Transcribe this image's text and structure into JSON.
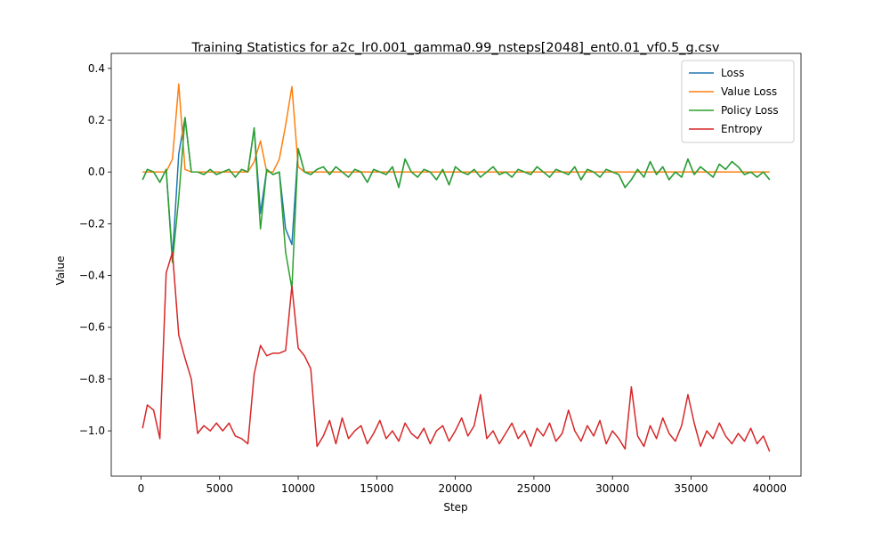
{
  "chart_data": {
    "type": "line",
    "title": "Training Statistics for a2c_lr0.001_gamma0.99_nsteps[2048]_ent0.01_vf0.5_g.csv",
    "xlabel": "Step",
    "ylabel": "Value",
    "legend": "upper right",
    "grid": false,
    "xlim": [
      -1895,
      41995
    ],
    "ylim": [
      -1.175,
      0.458
    ],
    "xticks": [
      0,
      5000,
      10000,
      15000,
      20000,
      25000,
      30000,
      35000,
      40000
    ],
    "yticks": [
      {
        "value": -1.0,
        "label": "−1.0"
      },
      {
        "value": -0.8,
        "label": "−0.8"
      },
      {
        "value": -0.6,
        "label": "−0.6"
      },
      {
        "value": -0.4,
        "label": "−0.4"
      },
      {
        "value": -0.2,
        "label": "−0.2"
      },
      {
        "value": 0,
        "label": "0.0"
      },
      {
        "value": 0.2,
        "label": "0.2"
      },
      {
        "value": 0.4,
        "label": "0.4"
      }
    ],
    "x": [
      100,
      400,
      800,
      1200,
      1600,
      2000,
      2400,
      2800,
      3200,
      3600,
      4000,
      4400,
      4800,
      5200,
      5600,
      6000,
      6400,
      6800,
      7200,
      7600,
      8000,
      8400,
      8800,
      9200,
      9600,
      10000,
      10400,
      10800,
      11200,
      11600,
      12000,
      12400,
      12800,
      13200,
      13600,
      14000,
      14400,
      14800,
      15200,
      15600,
      16000,
      16400,
      16800,
      17200,
      17600,
      18000,
      18400,
      18800,
      19200,
      19600,
      20000,
      20400,
      20800,
      21200,
      21600,
      22000,
      22400,
      22800,
      23200,
      23600,
      24000,
      24400,
      24800,
      25200,
      25600,
      26000,
      26400,
      26800,
      27200,
      27600,
      28000,
      28400,
      28800,
      29200,
      29600,
      30000,
      30400,
      30800,
      31200,
      31600,
      32000,
      32400,
      32800,
      33200,
      33600,
      34000,
      34400,
      34800,
      35200,
      35600,
      36000,
      36400,
      36800,
      37200,
      37600,
      38000,
      38400,
      38800,
      39200,
      39600,
      40000
    ],
    "series": [
      {
        "name": "Loss",
        "color": "#1f77b4",
        "values": [
          -0.03,
          0.01,
          0.0,
          -0.04,
          0.01,
          -0.33,
          0.07,
          0.21,
          0.0,
          0.0,
          -0.01,
          0.01,
          -0.01,
          0.0,
          0.01,
          -0.02,
          0.01,
          0.0,
          0.17,
          -0.16,
          0.01,
          -0.01,
          0.0,
          -0.22,
          -0.28,
          0.09,
          0.0,
          -0.01,
          0.01,
          0.02,
          -0.01,
          0.02,
          0.0,
          -0.02,
          0.01,
          0.0,
          -0.04,
          0.01,
          0.0,
          -0.01,
          0.02,
          -0.06,
          0.05,
          0.0,
          -0.02,
          0.01,
          0.0,
          -0.03,
          0.01,
          -0.05,
          0.02,
          0.0,
          -0.01,
          0.01,
          -0.02,
          0.0,
          0.02,
          -0.01,
          0.0,
          -0.02,
          0.01,
          0.0,
          -0.01,
          0.02,
          0.0,
          -0.02,
          0.01,
          0.0,
          -0.01,
          0.02,
          -0.03,
          0.01,
          0.0,
          -0.02,
          0.01,
          0.0,
          -0.01,
          -0.06,
          -0.03,
          0.01,
          -0.02,
          0.04,
          -0.01,
          0.02,
          -0.03,
          0.0,
          -0.02,
          0.05,
          -0.01,
          0.02,
          0.0,
          -0.02,
          0.03,
          0.01,
          0.04,
          0.02,
          -0.01,
          0.0,
          -0.02,
          0.0,
          -0.03
        ]
      },
      {
        "name": "Value Loss",
        "color": "#ff7f0e",
        "values": [
          0,
          0,
          0,
          0,
          0,
          0.05,
          0.34,
          0.01,
          0,
          0,
          0,
          0,
          0,
          0,
          0,
          0,
          0,
          0,
          0.04,
          0.12,
          0,
          0,
          0.05,
          0.18,
          0.33,
          0.02,
          0,
          0,
          0,
          0,
          0,
          0,
          0,
          0,
          0,
          0,
          0,
          0,
          0,
          0,
          0,
          0,
          0,
          0,
          0,
          0,
          0,
          0,
          0,
          0,
          0,
          0,
          0,
          0,
          0,
          0,
          0,
          0,
          0,
          0,
          0,
          0,
          0,
          0,
          0,
          0,
          0,
          0,
          0,
          0,
          0,
          0,
          0,
          0,
          0,
          0,
          0,
          0,
          0,
          0,
          0,
          0,
          0,
          0,
          0,
          0,
          0,
          0,
          0,
          0,
          0,
          0,
          0,
          0,
          0,
          0,
          0,
          0,
          0,
          0,
          0
        ]
      },
      {
        "name": "Policy Loss",
        "color": "#2ca02c",
        "values": [
          -0.03,
          0.01,
          0.0,
          -0.04,
          0.01,
          -0.35,
          -0.1,
          0.21,
          0.0,
          0.0,
          -0.01,
          0.01,
          -0.01,
          0.0,
          0.01,
          -0.02,
          0.01,
          0.0,
          0.17,
          -0.22,
          0.01,
          -0.01,
          0.0,
          -0.31,
          -0.45,
          0.09,
          0.0,
          -0.01,
          0.01,
          0.02,
          -0.01,
          0.02,
          0.0,
          -0.02,
          0.01,
          0.0,
          -0.04,
          0.01,
          0.0,
          -0.01,
          0.02,
          -0.06,
          0.05,
          0.0,
          -0.02,
          0.01,
          0.0,
          -0.03,
          0.01,
          -0.05,
          0.02,
          0.0,
          -0.01,
          0.01,
          -0.02,
          0.0,
          0.02,
          -0.01,
          0.0,
          -0.02,
          0.01,
          0.0,
          -0.01,
          0.02,
          0.0,
          -0.02,
          0.01,
          0.0,
          -0.01,
          0.02,
          -0.03,
          0.01,
          0.0,
          -0.02,
          0.01,
          0.0,
          -0.01,
          -0.06,
          -0.03,
          0.01,
          -0.02,
          0.04,
          -0.01,
          0.02,
          -0.03,
          0.0,
          -0.02,
          0.05,
          -0.01,
          0.02,
          0.0,
          -0.02,
          0.03,
          0.01,
          0.04,
          0.02,
          -0.01,
          0.0,
          -0.02,
          0.0,
          -0.03
        ]
      },
      {
        "name": "Entropy",
        "color": "#d62728",
        "values": [
          -0.99,
          -0.9,
          -0.92,
          -1.03,
          -0.39,
          -0.31,
          -0.63,
          -0.72,
          -0.8,
          -1.01,
          -0.98,
          -1.0,
          -0.97,
          -1.0,
          -0.97,
          -1.02,
          -1.03,
          -1.05,
          -0.78,
          -0.67,
          -0.71,
          -0.7,
          -0.7,
          -0.69,
          -0.44,
          -0.68,
          -0.71,
          -0.76,
          -1.06,
          -1.02,
          -0.96,
          -1.05,
          -0.95,
          -1.03,
          -1.0,
          -0.98,
          -1.05,
          -1.01,
          -0.96,
          -1.03,
          -1.0,
          -1.04,
          -0.97,
          -1.01,
          -1.03,
          -0.99,
          -1.05,
          -1.0,
          -0.98,
          -1.04,
          -1.0,
          -0.95,
          -1.02,
          -0.98,
          -0.86,
          -1.03,
          -1.0,
          -1.05,
          -1.01,
          -0.97,
          -1.03,
          -1.0,
          -1.06,
          -0.99,
          -1.02,
          -0.97,
          -1.04,
          -1.01,
          -0.92,
          -1.0,
          -1.04,
          -0.98,
          -1.02,
          -0.96,
          -1.05,
          -1.0,
          -1.03,
          -1.07,
          -0.83,
          -1.02,
          -1.06,
          -0.98,
          -1.03,
          -0.95,
          -1.01,
          -1.04,
          -0.98,
          -0.86,
          -0.97,
          -1.06,
          -1.0,
          -1.03,
          -0.97,
          -1.02,
          -1.05,
          -1.01,
          -1.04,
          -0.99,
          -1.05,
          -1.02,
          -1.08
        ]
      }
    ]
  }
}
